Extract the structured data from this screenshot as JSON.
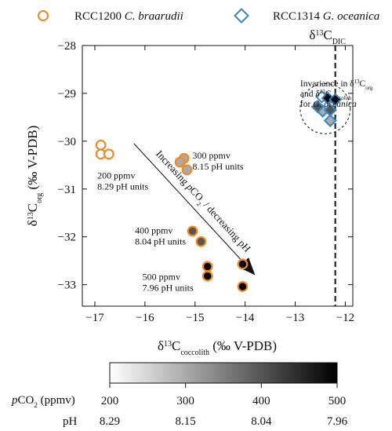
{
  "chart_data": {
    "type": "scatter",
    "xlabel": "δ13Ccoccolith (‰ V-PDB)",
    "xlabel_parts": {
      "delta": "δ",
      "sup": "13",
      "main": "C",
      "sub": "coccolith",
      "tail": " (‰ V-PDB)"
    },
    "ylabel": "δ13Corg (‰ V-PDB)",
    "ylabel_parts": {
      "delta": "δ",
      "sup": "13",
      "main": "C",
      "sub": "org",
      "tail": " (‰ V-PDB)"
    },
    "xlim": [
      -17.25,
      -11.85
    ],
    "ylim": [
      -33.45,
      -28.0
    ],
    "xticks": [
      -17,
      -16,
      -15,
      -14,
      -13,
      -12
    ],
    "yticks": [
      -28,
      -29,
      -30,
      -31,
      -32,
      -33
    ],
    "grid": false,
    "legend": {
      "placement": "top",
      "entries": [
        {
          "strain": "RCC1200",
          "species": "C. braarudii",
          "marker": "circle",
          "color": "#f08a24"
        },
        {
          "strain": "RCC1314",
          "species": "G. oceanica",
          "marker": "diamond",
          "color": "#3a86c4"
        }
      ]
    },
    "colormap": "gray (white → black)",
    "colorbar": {
      "pco2_label": "pCO2 (ppmv)",
      "pco2_label_parts": {
        "italic": "p",
        "main": "CO",
        "sub": "2",
        "tail": " (ppmv)"
      },
      "pco2_ticks": [
        "200",
        "300",
        "400",
        "500"
      ],
      "pco2_range": [
        200,
        500
      ],
      "ph_label": "pH",
      "ph_ticks": [
        "8.29",
        "8.15",
        "8.04",
        "7.96"
      ]
    },
    "dic_line": {
      "x": -12.2,
      "label": "δ13CDIC",
      "label_parts": {
        "delta": "δ",
        "sup": "13",
        "main": "C",
        "sub": "DIC"
      }
    },
    "series": [
      {
        "name": "RCC1200 C. braarudii",
        "marker": "circle",
        "edge_color": "#f08a24",
        "points": [
          {
            "x": -16.88,
            "y": -30.08,
            "pco2": 200
          },
          {
            "x": -16.88,
            "y": -30.27,
            "pco2": 200
          },
          {
            "x": -16.72,
            "y": -30.27,
            "pco2": 200
          },
          {
            "x": -15.22,
            "y": -30.36,
            "pco2": 300
          },
          {
            "x": -15.3,
            "y": -30.44,
            "pco2": 300
          },
          {
            "x": -15.16,
            "y": -30.6,
            "pco2": 300
          },
          {
            "x": -15.05,
            "y": -31.88,
            "pco2": 400
          },
          {
            "x": -14.88,
            "y": -32.1,
            "pco2": 400
          },
          {
            "x": -14.75,
            "y": -32.62,
            "pco2": 500
          },
          {
            "x": -14.75,
            "y": -32.82,
            "pco2": 500
          },
          {
            "x": -14.05,
            "y": -32.57,
            "pco2": 500
          },
          {
            "x": -14.05,
            "y": -33.04,
            "pco2": 500
          }
        ]
      },
      {
        "name": "RCC1314 G. oceanica",
        "marker": "diamond",
        "edge_color": "#3a86c4",
        "points": [
          {
            "x": -12.47,
            "y": -29.07,
            "pco2": 200
          },
          {
            "x": -12.45,
            "y": -29.37,
            "pco2": 300
          },
          {
            "x": -12.3,
            "y": -29.57,
            "pco2": 300
          },
          {
            "x": -12.55,
            "y": -29.28,
            "pco2": 400
          },
          {
            "x": -12.3,
            "y": -29.35,
            "pco2": 400
          },
          {
            "x": -12.35,
            "y": -29.1,
            "pco2": 500
          },
          {
            "x": -12.2,
            "y": -29.13,
            "pco2": 500
          }
        ]
      }
    ],
    "annotations": [
      {
        "id": "grp200",
        "lines": [
          "200 ppmv",
          "8.29 pH units"
        ],
        "x": -16.95,
        "y": -30.78
      },
      {
        "id": "grp300",
        "lines": [
          "300 ppmv",
          "8.15 pH units"
        ],
        "x": -15.05,
        "y": -30.36
      },
      {
        "id": "grp400",
        "lines": [
          "400 ppmv",
          "8.04 pH units"
        ],
        "x": -16.2,
        "y": -31.93
      },
      {
        "id": "grp500",
        "lines": [
          "500 ppmv",
          "7.96 pH units"
        ],
        "x": -16.05,
        "y": -32.9
      },
      {
        "id": "invariance",
        "lines": [
          "Invariance in δ13Corg",
          "and δ13Ccoccolith",
          "for G. oceanica"
        ],
        "x": -12.9,
        "y": -28.85
      }
    ],
    "invariance_parts": {
      "l1": {
        "pre": "Invariance in δ",
        "sup": "13",
        "main": "C",
        "sub": "org"
      },
      "l2": {
        "pre": "and δ",
        "sup": "13",
        "main": "C",
        "sub": "coccolith"
      },
      "l3": {
        "pre": "for ",
        "italic": "G. oceanica"
      }
    },
    "arrow": {
      "from": {
        "x": -16.22,
        "y": -30.05
      },
      "to": {
        "x": -13.8,
        "y": -32.8
      },
      "label": "Increasing pCO2 / decreasing pH",
      "label_parts": {
        "pre": "Increasing ",
        "italic": "p",
        "main": "CO",
        "sub": "2",
        "tail": " / decreasing pH"
      }
    },
    "circle": {
      "cx": -12.4,
      "cy": -29.32,
      "r_data_x": 0.5
    }
  }
}
